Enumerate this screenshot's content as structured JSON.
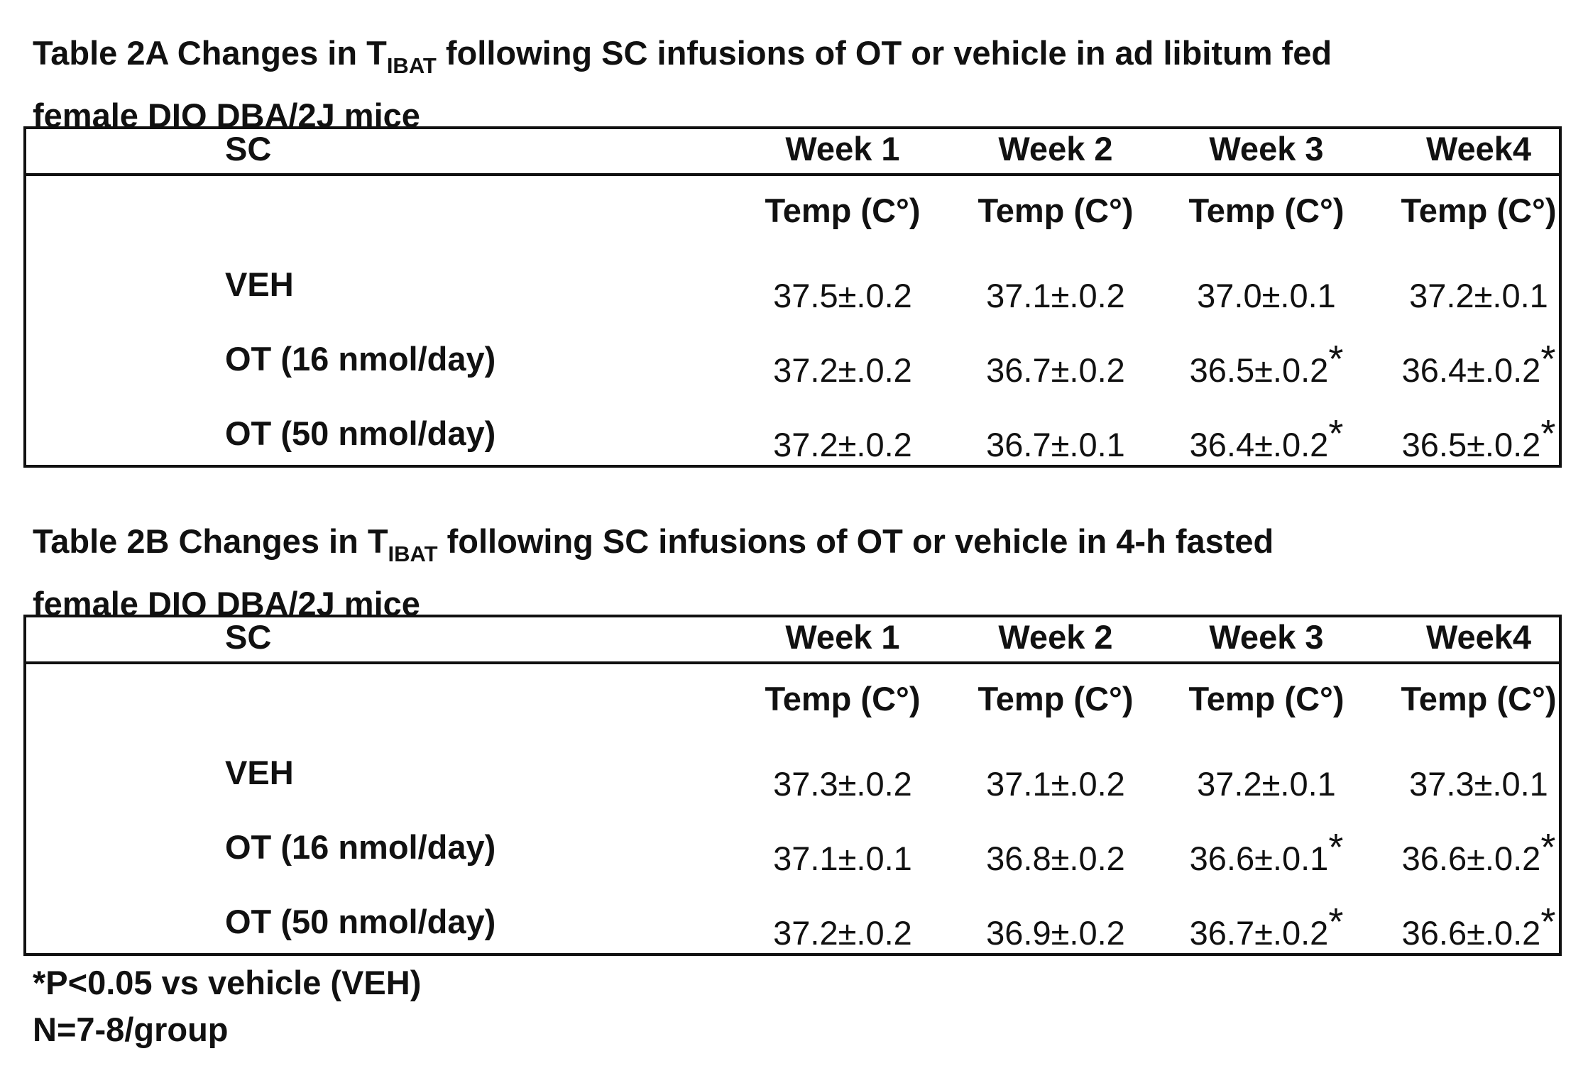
{
  "tables": [
    {
      "title_prefix": "Table 2A Changes in T",
      "title_sub": "IBAT",
      "title_suffix": " following SC infusions of OT or vehicle in ad libitum fed",
      "title_line2": "female DIO DBA/2J mice",
      "header": {
        "label": "SC",
        "weeks": [
          "Week 1",
          "Week 2",
          "Week 3",
          "Week4"
        ]
      },
      "unit_label": "Temp (C°)",
      "rows": [
        {
          "label": "VEH",
          "values": [
            "37.5±.0.2",
            "37.1±.0.2",
            "37.0±.0.1",
            "37.2±.0.1"
          ],
          "stars": [
            "",
            "",
            "",
            ""
          ]
        },
        {
          "label": "OT (16 nmol/day)",
          "values": [
            "37.2±.0.2",
            "36.7±.0.2",
            "36.5±.0.2",
            "36.4±.0.2"
          ],
          "stars": [
            "",
            "",
            "*",
            "*"
          ]
        },
        {
          "label": "OT (50 nmol/day)",
          "values": [
            "37.2±.0.2",
            "36.7±.0.1",
            "36.4±.0.2",
            "36.5±.0.2"
          ],
          "stars": [
            "",
            "",
            "*",
            "*"
          ]
        }
      ]
    },
    {
      "title_prefix": "Table 2B Changes in T",
      "title_sub": "IBAT",
      "title_suffix": " following SC infusions of OT or vehicle in 4-h fasted",
      "title_line2": "female DIO DBA/2J mice",
      "header": {
        "label": "SC",
        "weeks": [
          "Week 1",
          "Week 2",
          "Week 3",
          "Week4"
        ]
      },
      "unit_label": "Temp (C°)",
      "rows": [
        {
          "label": "VEH",
          "values": [
            "37.3±.0.2",
            "37.1±.0.2",
            "37.2±.0.1",
            "37.3±.0.1"
          ],
          "stars": [
            "",
            "",
            "",
            ""
          ]
        },
        {
          "label": "OT (16 nmol/day)",
          "values": [
            "37.1±.0.1",
            "36.8±.0.2",
            "36.6±.0.1",
            "36.6±.0.2"
          ],
          "stars": [
            "",
            "",
            "*",
            "*"
          ]
        },
        {
          "label": "OT (50 nmol/day)",
          "values": [
            "37.2±.0.2",
            "36.9±.0.2",
            "36.7±.0.2",
            "36.6±.0.2"
          ],
          "stars": [
            "",
            "",
            "*",
            "*"
          ]
        }
      ]
    }
  ],
  "footnotes": [
    "*P<0.05 vs vehicle (VEH)",
    "N=7-8/group"
  ]
}
